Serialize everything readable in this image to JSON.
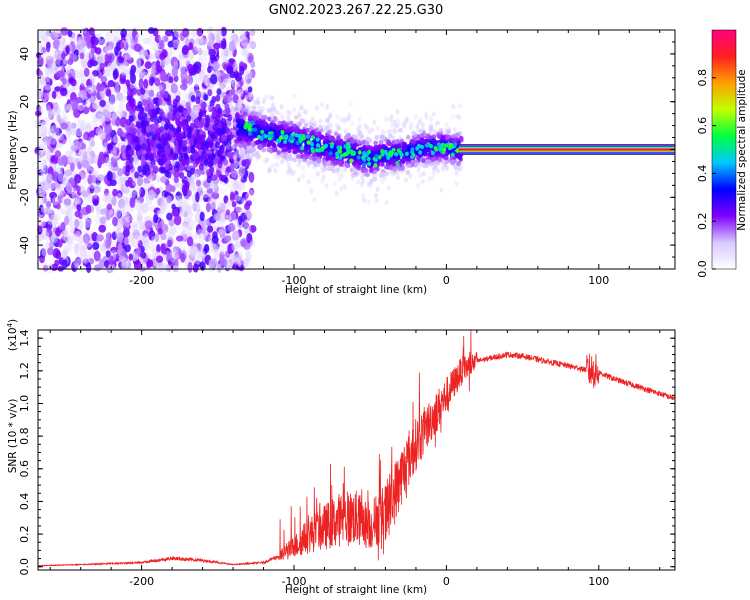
{
  "title": "GN02.2023.267.22.25.G30",
  "chart_data": [
    {
      "type": "heatmap",
      "name": "spectrogram",
      "xlabel": "Height of straight line (km)",
      "ylabel": "Frequency (Hz)",
      "xlim": [
        -268,
        150
      ],
      "ylim": [
        -50,
        50
      ],
      "xticks": [
        -200,
        -100,
        0,
        100
      ],
      "xtick_labels": [
        "-200",
        "-100",
        "0",
        "100"
      ],
      "yticks": [
        -40,
        -20,
        0,
        20,
        40
      ],
      "ytick_labels": [
        "-40",
        "-20",
        "0",
        "20",
        "40"
      ],
      "main_line_frequency": 0,
      "main_line_range": [
        8,
        150
      ],
      "noisy_region": [
        -268,
        -135
      ],
      "ridge": {
        "x": [
          -135,
          -120,
          -100,
          -80,
          -60,
          -50,
          -40,
          -30,
          -20,
          -10,
          0,
          8
        ],
        "y": [
          9,
          7,
          4,
          1,
          -2,
          -4,
          -2,
          -2,
          0,
          1,
          1,
          0
        ]
      },
      "colorbar": {
        "label": "Normalized spectral amplitude",
        "range": [
          0,
          1
        ],
        "ticks": [
          0.0,
          0.2,
          0.4,
          0.6,
          0.8
        ],
        "tick_labels": [
          "0.0",
          "0.2",
          "0.4",
          "0.6",
          "0.8"
        ],
        "colors": [
          "#ffffff",
          "#d8c8ff",
          "#8000ff",
          "#0000ff",
          "#00c8ff",
          "#00ff40",
          "#c0ff00",
          "#ffa000",
          "#ff2020",
          "#ff0080"
        ]
      }
    },
    {
      "type": "line",
      "name": "snr",
      "xlabel": "Height of straight line (km)",
      "ylabel": "SNR (10 * v/v)",
      "ylabel_scale": "(x10",
      "ylabel_exponent": "4",
      "ylabel_close": ")",
      "xlim": [
        -268,
        150
      ],
      "ylim": [
        -0.02,
        1.45
      ],
      "xticks": [
        -200,
        -100,
        0,
        100
      ],
      "xtick_labels": [
        "-200",
        "-100",
        "0",
        "100"
      ],
      "yticks": [
        0.0,
        0.2,
        0.4,
        0.6,
        0.8,
        1.0,
        1.2,
        1.4
      ],
      "ytick_labels": [
        "0.0",
        "0.2",
        "0.4",
        "0.6",
        "0.8",
        "1.0",
        "1.2",
        "1.4"
      ],
      "color": "#ee2222",
      "series_envelope": {
        "x": [
          -268,
          -240,
          -200,
          -180,
          -160,
          -140,
          -120,
          -110,
          -100,
          -90,
          -80,
          -70,
          -60,
          -50,
          -40,
          -30,
          -20,
          -10,
          0,
          10,
          20,
          30,
          40,
          50,
          60,
          70,
          80,
          90,
          95,
          100,
          110,
          120,
          130,
          140,
          150
        ],
        "y": [
          0.005,
          0.01,
          0.02,
          0.04,
          0.03,
          0.01,
          0.02,
          0.05,
          0.1,
          0.16,
          0.2,
          0.24,
          0.25,
          0.2,
          0.3,
          0.55,
          0.75,
          0.9,
          1.05,
          1.2,
          1.26,
          1.28,
          1.3,
          1.29,
          1.27,
          1.25,
          1.23,
          1.21,
          1.2,
          1.19,
          1.15,
          1.12,
          1.09,
          1.06,
          1.03
        ]
      }
    }
  ]
}
